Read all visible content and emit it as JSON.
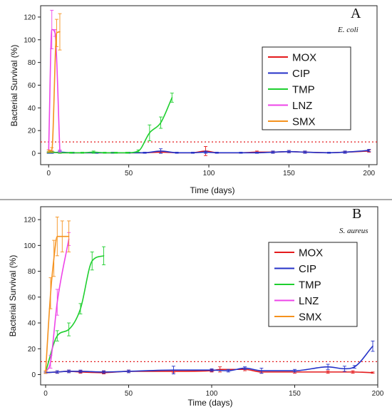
{
  "chart_data": [
    {
      "type": "line",
      "panel_label": "A",
      "organism": "E. coli",
      "xlabel": "Time (days)",
      "ylabel": "Bacterial Survival (%)",
      "xlim": [
        -5,
        205
      ],
      "ylim": [
        -10,
        130
      ],
      "xticks": [
        0,
        50,
        100,
        150,
        200
      ],
      "yticks": [
        0,
        20,
        40,
        60,
        80,
        100,
        120
      ],
      "threshold": 10,
      "legend_position": "right",
      "series": [
        {
          "name": "MOX",
          "color": "#e41a1c",
          "x": [
            0,
            2,
            7,
            15,
            30,
            40,
            50,
            60,
            70,
            80,
            90,
            98,
            105,
            120,
            130,
            140,
            150,
            160,
            175,
            185,
            200
          ],
          "y": [
            0.5,
            1,
            0.5,
            0.5,
            0.5,
            0.5,
            0.5,
            0.5,
            1,
            0.5,
            0.5,
            2,
            0.5,
            0.5,
            1,
            1,
            1.5,
            1,
            0.5,
            1,
            2
          ],
          "err": [
            0.5,
            1,
            0.5,
            0.5,
            0.5,
            0.5,
            0.5,
            0.5,
            1,
            0.5,
            0.5,
            4,
            0.5,
            0.5,
            1,
            1,
            1,
            1,
            0.5,
            1,
            1
          ]
        },
        {
          "name": "CIP",
          "color": "#2432c8",
          "x": [
            0,
            2,
            7,
            15,
            30,
            40,
            50,
            60,
            70,
            80,
            90,
            98,
            105,
            120,
            130,
            140,
            150,
            160,
            175,
            185,
            200
          ],
          "y": [
            0.5,
            0.5,
            1,
            0.5,
            0.5,
            0.5,
            0.5,
            0.5,
            2,
            0.5,
            0.5,
            1,
            0.5,
            0.5,
            0.5,
            1,
            1.5,
            1,
            0.5,
            1,
            2.5
          ],
          "err": [
            0.5,
            0.5,
            1,
            0.5,
            0.5,
            0.5,
            0.5,
            0.5,
            2,
            0.5,
            0.5,
            1,
            0.5,
            0.5,
            0.5,
            1,
            1,
            1,
            0.5,
            1,
            1
          ]
        },
        {
          "name": "TMP",
          "color": "#1fcf2f",
          "x": [
            0,
            2,
            7,
            14,
            21,
            28,
            35,
            42,
            49,
            56,
            63,
            70,
            77
          ],
          "y": [
            1,
            1,
            0.5,
            0.5,
            0.5,
            1,
            0.5,
            0.5,
            0.5,
            2,
            18,
            27,
            49
          ],
          "err": [
            0.5,
            0.5,
            0.5,
            0.5,
            0.5,
            1,
            0.5,
            0.5,
            0.5,
            1,
            7,
            5,
            4
          ]
        },
        {
          "name": "LNZ",
          "color": "#ee44e8",
          "x": [
            0,
            2,
            4,
            7
          ],
          "y": [
            2,
            109,
            106,
            2
          ],
          "err": [
            1,
            17,
            3,
            1
          ]
        },
        {
          "name": "SMX",
          "color": "#f5921e",
          "x": [
            0,
            2,
            5,
            7
          ],
          "y": [
            2,
            3,
            106,
            107
          ],
          "err": [
            1,
            2,
            12,
            16
          ]
        }
      ]
    },
    {
      "type": "line",
      "panel_label": "B",
      "organism": "S. aureus",
      "xlabel": "Time (days)",
      "ylabel": "Bacterial Survival (%)",
      "xlim": [
        -3,
        200
      ],
      "ylim": [
        -8,
        130
      ],
      "xticks": [
        0,
        50,
        100,
        150,
        200
      ],
      "yticks": [
        0,
        20,
        40,
        60,
        80,
        100,
        120
      ],
      "threshold": 10,
      "legend_position": "right",
      "series": [
        {
          "name": "MOX",
          "color": "#e41a1c",
          "x": [
            0,
            7,
            14,
            21,
            35,
            50,
            77,
            100,
            105,
            120,
            130,
            150,
            170,
            185,
            197
          ],
          "y": [
            1.5,
            2,
            2.5,
            2,
            1.5,
            2.5,
            2.5,
            3,
            4,
            4,
            2,
            2,
            2,
            2,
            1.5
          ],
          "err": [
            0.5,
            1,
            1,
            1,
            1,
            1,
            1,
            1,
            2,
            1,
            1,
            1,
            1,
            1,
            0.5
          ]
        },
        {
          "name": "CIP",
          "color": "#2432c8",
          "x": [
            0,
            7,
            14,
            21,
            35,
            50,
            77,
            100,
            110,
            120,
            130,
            150,
            170,
            180,
            186,
            197
          ],
          "y": [
            1.5,
            2,
            2.5,
            2.5,
            2,
            2.5,
            3.5,
            3.5,
            3,
            5,
            3,
            3,
            6,
            4.5,
            6,
            22
          ],
          "err": [
            0.5,
            1,
            1,
            1,
            1,
            1,
            3,
            1,
            1,
            1,
            2,
            1,
            2,
            2,
            1,
            4
          ]
        },
        {
          "name": "TMP",
          "color": "#1fcf2f",
          "x": [
            0,
            7,
            14,
            21,
            28,
            35
          ],
          "y": [
            2,
            30,
            35,
            51,
            88,
            92
          ],
          "err": [
            1,
            4,
            5,
            4,
            7,
            7
          ]
        },
        {
          "name": "LNZ",
          "color": "#ee44e8",
          "x": [
            0,
            3,
            7,
            14
          ],
          "y": [
            2,
            10,
            56,
            105
          ],
          "err": [
            1,
            5,
            10,
            5
          ]
        },
        {
          "name": "SMX",
          "color": "#f5921e",
          "x": [
            0,
            3,
            5,
            7,
            10,
            14
          ],
          "y": [
            2,
            63,
            90,
            107,
            107,
            107
          ],
          "err": [
            1,
            12,
            14,
            15,
            12,
            12
          ]
        }
      ]
    }
  ]
}
